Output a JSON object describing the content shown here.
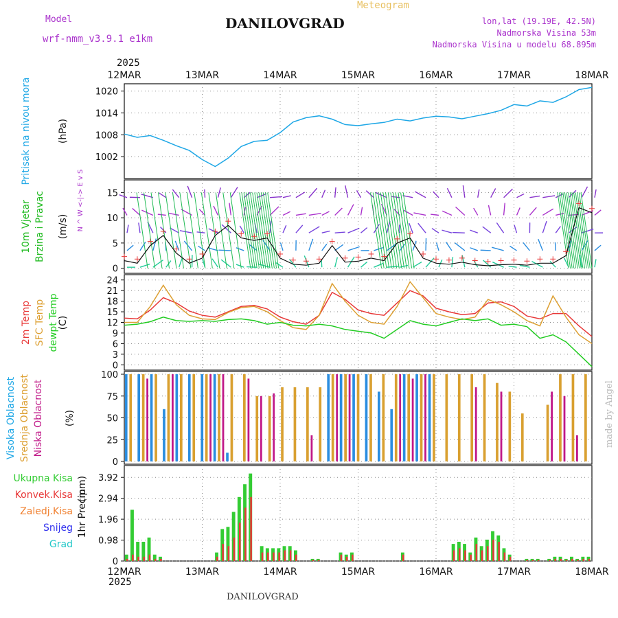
{
  "header": {
    "model_label": "Model",
    "model_name": "wrf-nmm_v3.9.1 e1km",
    "title": "DANILOVGRAD",
    "subtitle": "Meteogram",
    "lonlat": "lon,lat (19.19E, 42.5N)",
    "altitude": "Nadmorska Visina 53m",
    "model_altitude": "Nadmorska Visina u modelu 68.895m",
    "year": "2025",
    "footer": "DANILOVGRAD",
    "watermark": "made by Angel"
  },
  "colors": {
    "pressure": "#1ea7e6",
    "wind_green": "#22bb22",
    "wind_purple": "#aa33cc",
    "temp2m": "#e83838",
    "sfc": "#dda033",
    "dewpt": "#22cc22",
    "high_cloud": "#2a8de0",
    "mid_cloud": "#d9a030",
    "low_cloud": "#c01888",
    "total_rain": "#33cc33",
    "conv_rain": "#e83838",
    "freezing": "#f08030",
    "snow": "#3333ee",
    "grad": "#22c8c8"
  },
  "chart_data": {
    "x_ticks": [
      "12MAR",
      "13MAR",
      "14MAR",
      "15MAR",
      "16MAR",
      "17MAR",
      "18MAR"
    ],
    "panels": [
      {
        "id": "pressure",
        "type": "line",
        "ylabel": "Pritisak na nivou mora",
        "unit": "(hPa)",
        "ylim": [
          996,
          1022
        ],
        "yticks": [
          "1002",
          "1008",
          "1014",
          "1020"
        ],
        "series": [
          {
            "color": "pressure",
            "values": [
              1008.2,
              1007.3,
              1007.8,
              1006.5,
              1005.0,
              1003.7,
              1001.2,
              999.3,
              1001.6,
              1004.8,
              1006.2,
              1006.5,
              1008.6,
              1011.5,
              1012.7,
              1013.2,
              1012.3,
              1010.8,
              1010.5,
              1011.0,
              1011.4,
              1012.3,
              1011.8,
              1012.6,
              1013.1,
              1012.9,
              1012.4,
              1013.1,
              1013.8,
              1014.7,
              1016.3,
              1015.9,
              1017.3,
              1016.9,
              1018.4,
              1020.4,
              1021.0
            ]
          }
        ]
      },
      {
        "id": "wind",
        "type": "line",
        "ylabel": "10m Vjetar Brzina i Pravac",
        "unit": "(m/s)",
        "ylim": [
          -1,
          17.5
        ],
        "yticks": [
          "0",
          "5",
          "10",
          "15"
        ],
        "compass": "N ^ W <-|-> E v S",
        "series": [
          {
            "name": "speed",
            "color": "#111111",
            "values": [
              1.5,
              1.0,
              4.5,
              6.5,
              3.0,
              1.0,
              2.0,
              6.5,
              8.5,
              6.0,
              5.5,
              6.0,
              2.0,
              0.8,
              0.6,
              1.0,
              4.5,
              1.2,
              1.4,
              2.0,
              1.5,
              5.0,
              6.0,
              2.0,
              1.0,
              0.8,
              1.2,
              0.7,
              0.5,
              0.7,
              0.8,
              0.6,
              1.0,
              1.0,
              2.5,
              12.0,
              11.0
            ]
          }
        ]
      },
      {
        "id": "temperature",
        "type": "line",
        "ylabel": "2m Temp SFC Temp dewpt Temp",
        "unit": "(C)",
        "ylim": [
          -1.5,
          25.5
        ],
        "yticks": [
          "0",
          "3",
          "6",
          "9",
          "12",
          "15",
          "18",
          "21",
          "24"
        ],
        "series": [
          {
            "name": "2m Temp",
            "color": "temp2m",
            "values": [
              13.2,
              13.0,
              15.5,
              19.0,
              17.5,
              15.2,
              14.0,
              13.5,
              15.0,
              16.5,
              16.8,
              15.8,
              13.5,
              12.2,
              11.5,
              14.0,
              20.5,
              18.5,
              15.5,
              14.5,
              14.0,
              17.5,
              21.0,
              19.5,
              16.0,
              15.0,
              14.2,
              14.5,
              17.5,
              17.8,
              16.5,
              13.8,
              13.0,
              14.5,
              14.5,
              11.0,
              8.0
            ]
          },
          {
            "name": "SFC Temp",
            "color": "sfc",
            "values": [
              12.0,
              12.0,
              16.5,
              22.5,
              17.0,
              14.0,
              13.0,
              12.8,
              14.8,
              16.2,
              16.5,
              15.0,
              12.5,
              10.5,
              10.0,
              14.0,
              23.0,
              18.0,
              14.0,
              12.0,
              11.5,
              16.5,
              23.5,
              19.0,
              14.5,
              13.5,
              12.8,
              13.5,
              18.5,
              17.0,
              15.0,
              12.5,
              11.0,
              19.5,
              13.5,
              8.5,
              6.0
            ]
          },
          {
            "name": "dewpt Temp",
            "color": "dewpt",
            "values": [
              11.2,
              11.5,
              12.2,
              13.5,
              12.5,
              12.3,
              12.5,
              12.3,
              12.8,
              13.0,
              12.5,
              11.5,
              12.0,
              11.2,
              11.0,
              11.5,
              11.0,
              10.0,
              9.5,
              9.0,
              7.5,
              10.0,
              12.5,
              11.5,
              11.0,
              12.0,
              13.0,
              12.5,
              13.0,
              11.2,
              11.5,
              10.8,
              7.5,
              8.5,
              6.5,
              3.0,
              -0.5
            ]
          }
        ]
      },
      {
        "id": "clouds",
        "type": "bar",
        "ylabel": "Visoka Oblacnost Srednja Oblacnost Niska Oblacnost",
        "unit": "(%)",
        "ylim": [
          0,
          100
        ],
        "yticks": [
          "0",
          "25",
          "50",
          "75",
          "100"
        ],
        "series": [
          {
            "name": "Visoka Oblacnost",
            "color": "high_cloud",
            "values": [
              100,
              100,
              100,
              60,
              100,
              100,
              100,
              100,
              10,
              0,
              0,
              0,
              0,
              0,
              0,
              0,
              100,
              100,
              100,
              100,
              80,
              60,
              100,
              100,
              100,
              0,
              0,
              0,
              0,
              0,
              0,
              0,
              0,
              0,
              0,
              0,
              0
            ]
          },
          {
            "name": "Srednja Oblacnost",
            "color": "mid_cloud",
            "values": [
              100,
              100,
              100,
              100,
              100,
              100,
              100,
              100,
              100,
              100,
              75,
              75,
              85,
              85,
              85,
              85,
              100,
              100,
              100,
              100,
              100,
              100,
              100,
              100,
              100,
              100,
              100,
              100,
              100,
              90,
              80,
              55,
              0,
              65,
              100,
              100,
              100
            ]
          },
          {
            "name": "Niska Oblacnost",
            "color": "low_cloud",
            "values": [
              0,
              95,
              0,
              100,
              0,
              0,
              100,
              100,
              0,
              95,
              75,
              78,
              0,
              0,
              30,
              0,
              100,
              100,
              0,
              0,
              0,
              100,
              95,
              100,
              0,
              0,
              0,
              85,
              0,
              80,
              0,
              0,
              0,
              80,
              75,
              30,
              0
            ]
          }
        ]
      },
      {
        "id": "precip",
        "type": "bar",
        "ylabel": "1hr Precip",
        "unit": "(mm)",
        "ylim": [
          0,
          4.41
        ],
        "yticks": [
          "0",
          "0.98",
          "1.96",
          "2.94",
          "3.92"
        ],
        "legend": [
          "Ukupna Kisa",
          "Konvek.Kisa",
          "Zaledj.Kisa",
          "Snijeg",
          "Grad"
        ],
        "series": [
          {
            "name": "Ukupna Kisa",
            "color": "total_rain",
            "values": [
              0.3,
              2.4,
              0.9,
              0.9,
              1.1,
              0.3,
              0.2,
              0,
              0,
              0,
              0,
              0,
              0,
              0,
              0,
              0,
              0.4,
              1.5,
              1.6,
              2.3,
              3.0,
              3.6,
              4.1,
              0,
              0.7,
              0.6,
              0.6,
              0.6,
              0.7,
              0.7,
              0.5,
              0,
              0,
              0.1,
              0.1,
              0,
              0,
              0,
              0.4,
              0.3,
              0.4,
              0,
              0,
              0,
              0,
              0,
              0,
              0,
              0,
              0.4,
              0,
              0,
              0,
              0,
              0,
              0,
              0,
              0,
              0.8,
              0.9,
              0.8,
              0.4,
              1.1,
              0.7,
              1.0,
              1.4,
              1.2,
              0.6,
              0.3,
              0,
              0,
              0.1,
              0.1,
              0.1,
              0,
              0.1,
              0.2,
              0.2,
              0.1,
              0.2,
              0.1,
              0.2,
              0.2
            ]
          },
          {
            "name": "Konvek.Kisa",
            "color": "conv_rain",
            "values": [
              0.1,
              0.3,
              0.2,
              0.2,
              0.3,
              0.1,
              0.1,
              0,
              0,
              0,
              0,
              0,
              0,
              0,
              0,
              0,
              0.2,
              0.8,
              0.7,
              1.1,
              1.8,
              2.5,
              3.0,
              0,
              0.4,
              0.4,
              0.4,
              0.4,
              0.5,
              0.5,
              0.3,
              0,
              0,
              0.05,
              0.05,
              0,
              0,
              0,
              0.3,
              0.2,
              0.3,
              0,
              0,
              0,
              0,
              0,
              0,
              0,
              0,
              0.3,
              0,
              0,
              0,
              0,
              0,
              0,
              0,
              0,
              0.5,
              0.6,
              0.5,
              0.3,
              0.8,
              0.5,
              0.7,
              1.0,
              0.9,
              0.4,
              0.2,
              0,
              0,
              0.05,
              0.05,
              0.05,
              0,
              0.05,
              0.1,
              0.1,
              0.05,
              0.1,
              0.05,
              0.1,
              0.1
            ]
          }
        ]
      }
    ]
  }
}
